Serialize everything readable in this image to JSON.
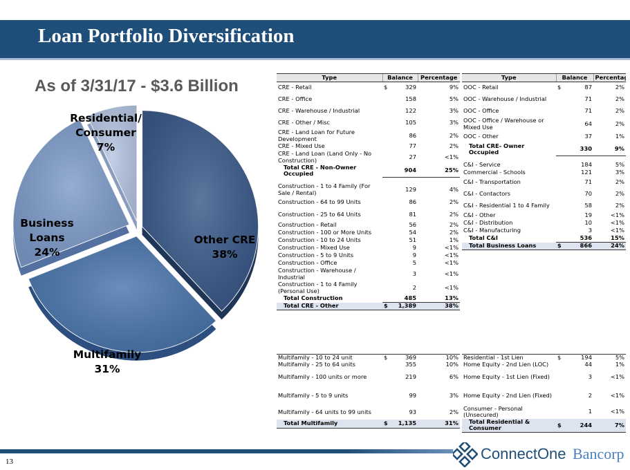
{
  "title": "Loan Portfolio Diversification",
  "subtitle": "As of 3/31/17 - $3.6 Billion",
  "page_number": "13",
  "logo": {
    "word1": "ConnectOne",
    "word2": "Bancorp"
  },
  "colors": {
    "title_bar": "#1f4e79",
    "pie_other_cre": "#3a5a8a",
    "pie_multifamily": "#4a76ad",
    "pie_business": "#7e9cca",
    "pie_residential": "#b5c6e3"
  },
  "chart_data": {
    "type": "pie",
    "title": "",
    "slices": [
      {
        "label_lines": [
          "Other CRE"
        ],
        "pct_label": "38%",
        "value": 38
      },
      {
        "label_lines": [
          "Multifamily"
        ],
        "pct_label": "31%",
        "value": 31
      },
      {
        "label_lines": [
          "Business",
          "Loans"
        ],
        "pct_label": "24%",
        "value": 24
      },
      {
        "label_lines": [
          "Residential/",
          "Consumer"
        ],
        "pct_label": "7%",
        "value": 7
      }
    ]
  },
  "cre_table": {
    "headers": [
      "Type",
      "Balance",
      "Percentage"
    ],
    "rows": [
      {
        "type": "CRE - Retail",
        "dollar": "$",
        "balance": "329",
        "pct": "9%"
      },
      {
        "type": "CRE - Office",
        "balance": "158",
        "pct": "5%"
      },
      {
        "type": "CRE - Warehouse / Industrial",
        "balance": "122",
        "pct": "3%"
      },
      {
        "type": "CRE - Other / Misc",
        "balance": "105",
        "pct": "3%"
      },
      {
        "type": "CRE - Land Loan for Future Development",
        "balance": "86",
        "pct": "2%"
      },
      {
        "type": "CRE - Mixed Use",
        "balance": "77",
        "pct": "2%"
      },
      {
        "type": "CRE - Land Loan (Land Only - No Construction)",
        "balance": "27",
        "pct": "<1%"
      },
      {
        "type": "Total CRE - Non-Owner Occupied",
        "balance": "904",
        "pct": "25%",
        "total": true
      },
      {
        "type": "",
        "balance": "",
        "pct": ""
      },
      {
        "type": "Construction - 1 to 4 Family (For Sale / Rental)",
        "balance": "129",
        "pct": "4%"
      },
      {
        "type": "Construction - 64 to 99 Units",
        "balance": "86",
        "pct": "2%"
      },
      {
        "type": "Construction - 25 to 64 Units",
        "balance": "81",
        "pct": "2%"
      },
      {
        "type": "Construction - Retail",
        "balance": "56",
        "pct": "2%"
      },
      {
        "type": "Construction - 100 or More Units",
        "balance": "54",
        "pct": "2%"
      },
      {
        "type": "Construction - 10 to 24 Units",
        "balance": "51",
        "pct": "1%"
      },
      {
        "type": "Construction - Mixed Use",
        "balance": "9",
        "pct": "<1%"
      },
      {
        "type": "Construction - 5 to 9 Units",
        "balance": "9",
        "pct": "<1%"
      },
      {
        "type": "Construction - Office",
        "balance": "5",
        "pct": "<1%"
      },
      {
        "type": "Construction - Warehouse / Industrial",
        "balance": "3",
        "pct": "<1%"
      },
      {
        "type": "Construction - 1 to 4 Family (Personal Use)",
        "balance": "2",
        "pct": "<1%"
      },
      {
        "type": "Total Construction",
        "balance": "485",
        "pct": "13%",
        "total": true
      },
      {
        "type": "Total CRE - Other",
        "dollar": "$",
        "balance": "1,389",
        "pct": "38%",
        "total": true,
        "shade": true
      }
    ]
  },
  "business_table": {
    "headers": [
      "Type",
      "Balance",
      "Percentage"
    ],
    "rows": [
      {
        "type": "OOC - Retail",
        "dollar": "$",
        "balance": "87",
        "pct": "2%"
      },
      {
        "type": "OOC - Warehouse / Industrial",
        "balance": "71",
        "pct": "2%"
      },
      {
        "type": "OOC - Office",
        "balance": "71",
        "pct": "2%"
      },
      {
        "type": "OOC - Office / Warehouse or Mixed Use",
        "balance": "64",
        "pct": "2%"
      },
      {
        "type": "OOC - Other",
        "balance": "37",
        "pct": "1%"
      },
      {
        "type": "Total CRE- Owner Occupied",
        "balance": "330",
        "pct": "9%",
        "total": true
      },
      {
        "type": "",
        "balance": "",
        "pct": ""
      },
      {
        "type": "C&I - Service",
        "balance": "184",
        "pct": "5%"
      },
      {
        "type": "Commercial - Schools",
        "balance": "121",
        "pct": "3%"
      },
      {
        "type": "C&I - Transportation",
        "balance": "71",
        "pct": "2%"
      },
      {
        "type": "C&I - Contactors",
        "balance": "70",
        "pct": "2%"
      },
      {
        "type": "C&I - Residential 1 to 4 Family",
        "balance": "58",
        "pct": "2%"
      },
      {
        "type": "C&I - Other",
        "balance": "19",
        "pct": "<1%"
      },
      {
        "type": "C&I - Distribution",
        "balance": "10",
        "pct": "<1%"
      },
      {
        "type": "C&I - Manufacturing",
        "balance": "3",
        "pct": "<1%"
      },
      {
        "type": "Total C&I",
        "balance": "536",
        "pct": "15%",
        "total": true
      },
      {
        "type": "Total Business Loans",
        "dollar": "$",
        "balance": "866",
        "pct": "24%",
        "total": true,
        "shade": true
      }
    ]
  },
  "multifamily_table": {
    "rows": [
      {
        "type": "Multifamily - 10 to 24 unit",
        "dollar": "$",
        "balance": "369",
        "pct": "10%"
      },
      {
        "type": "Multifamily - 25 to 64 units",
        "balance": "355",
        "pct": "10%"
      },
      {
        "type": "Multifamily - 100 units or more",
        "balance": "219",
        "pct": "6%"
      },
      {
        "type": "Multifamily - 5 to 9 units",
        "balance": "99",
        "pct": "3%"
      },
      {
        "type": "Multifamily - 64 units to 99 units",
        "balance": "93",
        "pct": "2%"
      },
      {
        "type": "Total Multifamily",
        "dollar": "$",
        "balance": "1,135",
        "pct": "31%",
        "total": true,
        "shade": true
      }
    ]
  },
  "residential_table": {
    "rows": [
      {
        "type": "Residential - 1st Lien",
        "dollar": "$",
        "balance": "194",
        "pct": "5%"
      },
      {
        "type": "Home Equity - 2nd Lien (LOC)",
        "balance": "44",
        "pct": "1%"
      },
      {
        "type": "Home Equity - 1st Lien (Fixed)",
        "balance": "3",
        "pct": "<1%"
      },
      {
        "type": "Home Equity - 2nd Lien (Fixed)",
        "balance": "2",
        "pct": "<1%"
      },
      {
        "type": "Consumer - Personal (Unsecured)",
        "balance": "1",
        "pct": "<1%"
      },
      {
        "type": "Total Residential & Consumer",
        "dollar": "$",
        "balance": "244",
        "pct": "7%",
        "total": true,
        "shade": true
      }
    ]
  }
}
